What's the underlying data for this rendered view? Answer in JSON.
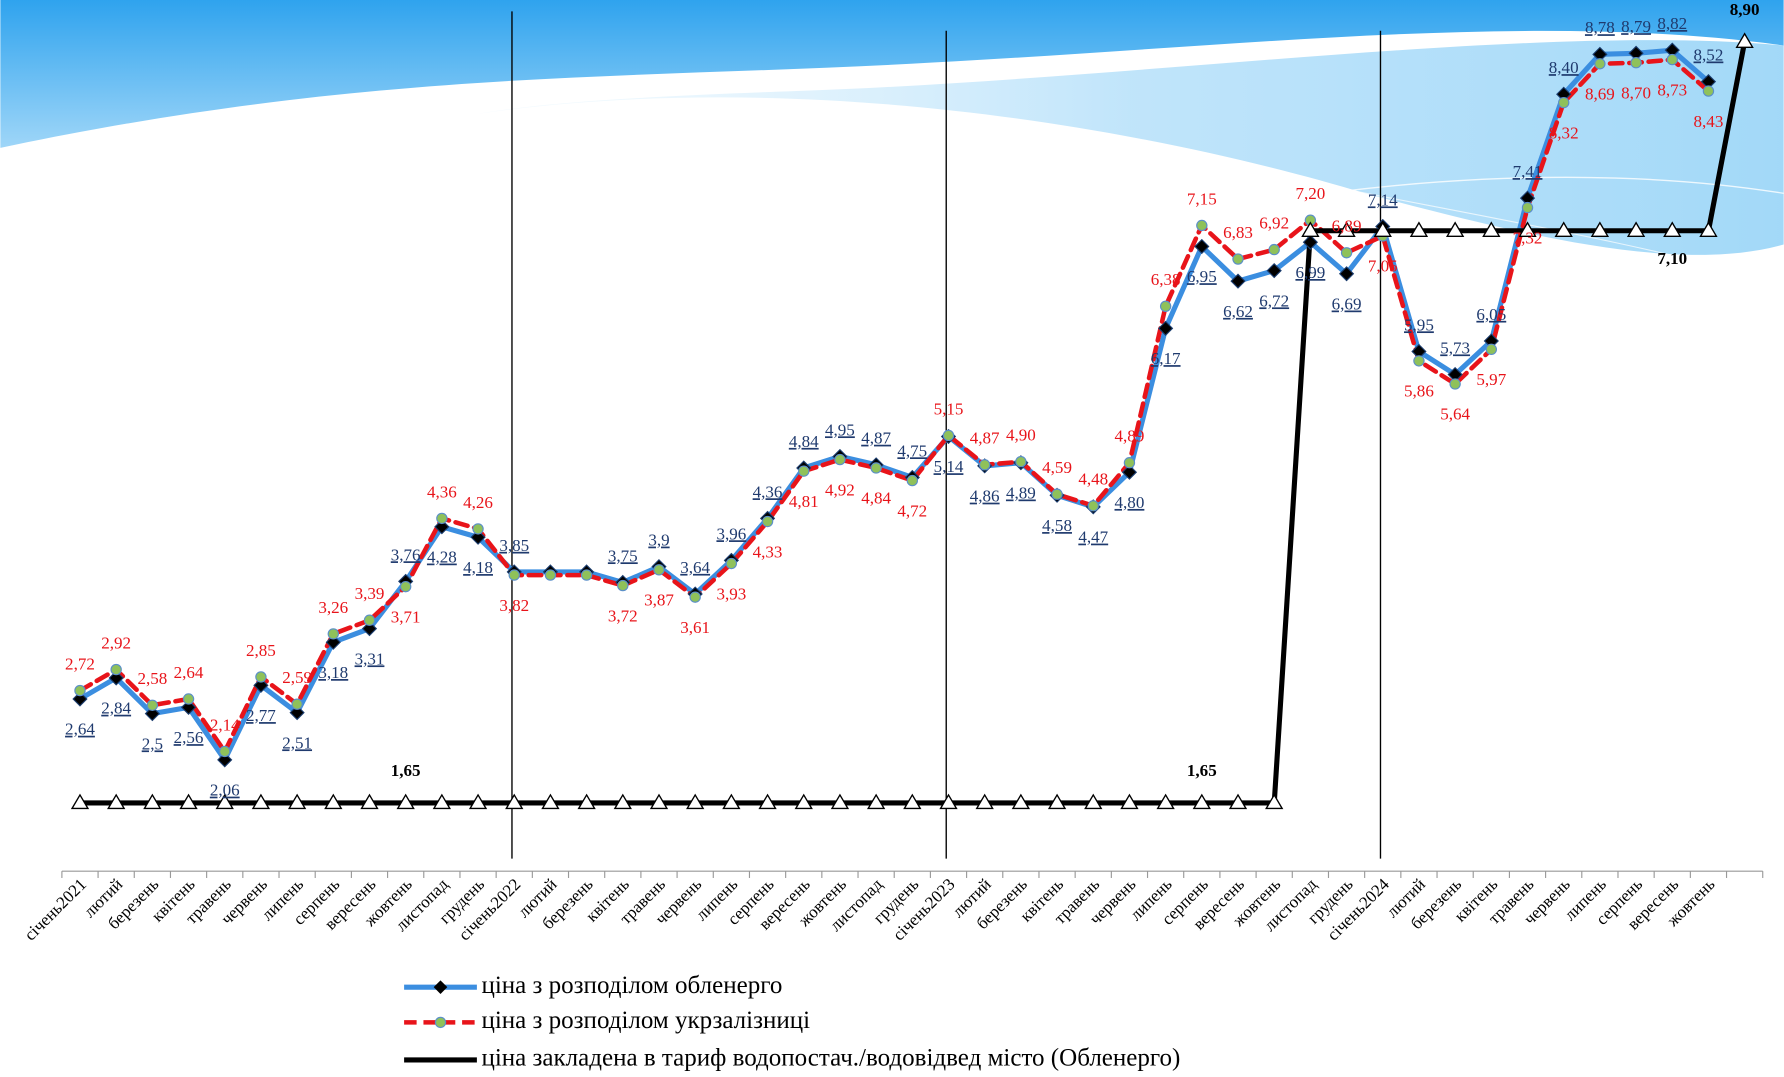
{
  "chart_data": {
    "type": "line",
    "categories": [
      "січень2021",
      "лютий",
      "березень",
      "квітень",
      "травень",
      "червень",
      "липень",
      "серпень",
      "вересень",
      "жовтень",
      "листопад",
      "грудень",
      "січень2022",
      "лютий",
      "березень",
      "квітень",
      "травень",
      "червень",
      "липень",
      "серпень",
      "вересень",
      "жовтень",
      "листопад",
      "грудень",
      "січень2023",
      "лютий",
      "березень",
      "квітень",
      "травень",
      "червень",
      "липень",
      "серпень",
      "вересень",
      "жовтень",
      "листопад",
      "грудень",
      "січень2024",
      "лютий",
      "березень",
      "квітень",
      "травень",
      "червень",
      "липень",
      "серпень",
      "вересень",
      "жовтень",
      null
    ],
    "series": [
      {
        "name": "ціна з розподілом обленерго",
        "color": "#3b8ee0",
        "values": [
          2.64,
          2.84,
          2.5,
          2.56,
          2.06,
          2.77,
          2.51,
          3.18,
          3.31,
          3.76,
          4.28,
          4.18,
          3.85,
          3.85,
          3.85,
          3.75,
          3.9,
          3.64,
          3.96,
          4.36,
          4.84,
          4.95,
          4.87,
          4.75,
          5.14,
          4.86,
          4.89,
          4.58,
          4.47,
          4.8,
          6.17,
          6.95,
          6.62,
          6.72,
          6.99,
          6.69,
          7.14,
          5.95,
          5.73,
          6.05,
          7.41,
          8.4,
          8.78,
          8.79,
          8.82,
          8.52,
          null
        ],
        "value_labels": [
          "2,64",
          "2,84",
          "2,5",
          "2,56",
          "2,06",
          "2,77",
          "2,51",
          "3,18",
          "3,31",
          "3,76",
          "4,28",
          "4,18",
          "3,85",
          null,
          null,
          "3,75",
          "3,9",
          "3,64",
          "3,96",
          "4,36",
          "4,84",
          "4,95",
          "4,87",
          "4,75",
          "5,14",
          "4,86",
          "4,89",
          "4,58",
          "4,47",
          "4,80",
          "6,17",
          "6,95",
          "6,62",
          "6,72",
          "6,99",
          "6,69",
          "7,14",
          "5,95",
          "5,73",
          "6,05",
          "7,41",
          "8,40",
          "8,78",
          "8,79",
          "8,82",
          "8,52",
          null
        ]
      },
      {
        "name": "ціна з розподілом укрзалізниці",
        "color": "#e8141a",
        "values": [
          2.72,
          2.92,
          2.58,
          2.64,
          2.14,
          2.85,
          2.59,
          3.26,
          3.39,
          3.71,
          4.36,
          4.26,
          3.82,
          3.82,
          3.82,
          3.72,
          3.87,
          3.61,
          3.93,
          4.33,
          4.81,
          4.92,
          4.84,
          4.72,
          5.15,
          4.87,
          4.9,
          4.59,
          4.48,
          4.89,
          6.38,
          7.15,
          6.83,
          6.92,
          7.2,
          6.89,
          7.05,
          5.86,
          5.64,
          5.97,
          7.32,
          8.32,
          8.69,
          8.7,
          8.73,
          8.43,
          null
        ],
        "value_labels": [
          "2,72",
          "2,92",
          "2,58",
          "2,64",
          "2,14",
          "2,85",
          "2,59",
          "3,26",
          "3,39",
          "3,71",
          "4,36",
          "4,26",
          "3,82",
          null,
          null,
          "3,72",
          "3,87",
          "3,61",
          "3,93",
          "4,33",
          "4,81",
          "4,92",
          "4,84",
          "4,72",
          "5,15",
          "4,87",
          "4,90",
          "4,59",
          "4,48",
          "4,89",
          "6,38",
          "7,15",
          "6,83",
          "6,92",
          "7,20",
          "6,89",
          "7,05",
          "5,86",
          "5,64",
          "5,97",
          "7,32",
          "8,32",
          "8,69",
          "8,70",
          "8,73",
          "8,43",
          null
        ]
      },
      {
        "name": "ціна закладена в тариф водопостач./водовідвед місто (Обленерго)",
        "color": "#000000",
        "values": [
          1.65,
          1.65,
          1.65,
          1.65,
          1.65,
          1.65,
          1.65,
          1.65,
          1.65,
          1.65,
          1.65,
          1.65,
          1.65,
          1.65,
          1.65,
          1.65,
          1.65,
          1.65,
          1.65,
          1.65,
          1.65,
          1.65,
          1.65,
          1.65,
          1.65,
          1.65,
          1.65,
          1.65,
          1.65,
          1.65,
          1.65,
          1.65,
          1.65,
          1.65,
          7.1,
          7.1,
          7.1,
          7.1,
          7.1,
          7.1,
          7.1,
          7.1,
          7.1,
          7.1,
          7.1,
          7.1,
          8.9
        ],
        "value_labels": [
          null,
          null,
          null,
          null,
          null,
          null,
          null,
          null,
          null,
          "1,65",
          null,
          null,
          null,
          null,
          null,
          null,
          null,
          null,
          null,
          null,
          null,
          null,
          null,
          null,
          null,
          null,
          null,
          null,
          null,
          null,
          null,
          "1,65",
          null,
          null,
          null,
          null,
          null,
          null,
          null,
          null,
          null,
          null,
          null,
          null,
          "7,10",
          null,
          "8,90"
        ]
      }
    ],
    "ylim": [
      1,
      9.2
    ],
    "grid": false,
    "legend": "bottom"
  }
}
